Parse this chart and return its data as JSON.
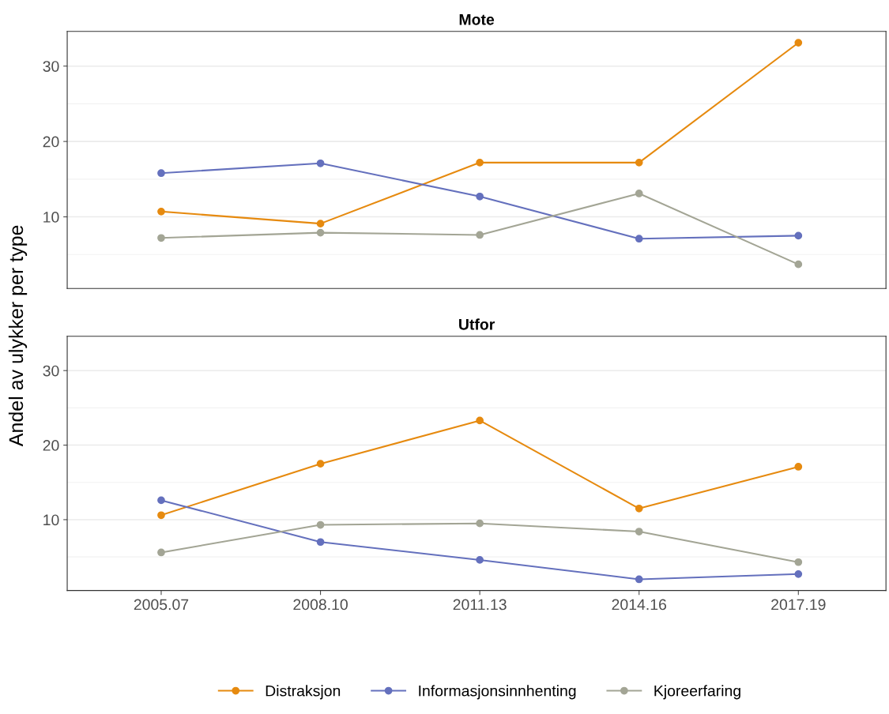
{
  "chart_data": [
    {
      "type": "line",
      "title": "Mote",
      "ylabel": "Andel av ulykker per type",
      "categories": [
        "2005.07",
        "2008.10",
        "2011.13",
        "2014.16",
        "2017.19"
      ],
      "series": [
        {
          "name": "Distraksjon",
          "color": "#e68a0f",
          "values": [
            10.7,
            9.1,
            17.2,
            17.2,
            33.1
          ]
        },
        {
          "name": "Informasjonsinnhenting",
          "color": "#6470bd",
          "values": [
            15.8,
            17.1,
            12.7,
            7.1,
            7.5
          ]
        },
        {
          "name": "Kjoreerfaring",
          "color": "#a3a595",
          "values": [
            7.2,
            7.9,
            7.6,
            13.1,
            3.7
          ]
        }
      ],
      "ylim": [
        0.5,
        34.6
      ],
      "yticks": [
        10,
        20,
        30
      ],
      "grid": "y",
      "marker": "circle",
      "line_style": "solid",
      "tick_labels": "y",
      "legend": "bottom"
    },
    {
      "type": "line",
      "title": "Utfor",
      "categories": [
        "2005.07",
        "2008.10",
        "2011.13",
        "2014.16",
        "2017.19"
      ],
      "series": [
        {
          "color": "#e68a0f",
          "values": [
            10.6,
            17.5,
            23.3,
            11.5,
            17.1
          ]
        },
        {
          "color": "#6470bd",
          "values": [
            12.6,
            7.0,
            4.6,
            2.0,
            2.7
          ]
        },
        {
          "color": "#a3a595",
          "values": [
            5.6,
            9.3,
            9.5,
            8.4,
            4.3
          ]
        }
      ],
      "ylim": [
        0.5,
        34.6
      ],
      "yticks": [
        10,
        20,
        30
      ],
      "grid": "y",
      "marker": "circle",
      "line_style": "solid"
    }
  ]
}
